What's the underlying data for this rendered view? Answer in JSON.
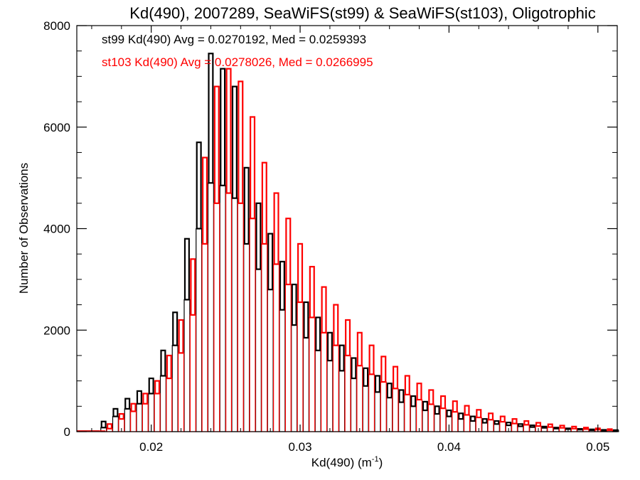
{
  "chart_data": {
    "type": "bar",
    "title": "Kd(490), 2007289, SeaWiFS(st99) & SeaWiFS(st103), Oligotrophic",
    "xlabel": "Kd(490) (m",
    "xlabel_sup": "-1",
    "xlabel_end": ")",
    "ylabel": "Number of Observations",
    "xlim": [
      0.015,
      0.0513
    ],
    "ylim": [
      0,
      8000
    ],
    "x_ticks": [
      0.02,
      0.03,
      0.04,
      0.05
    ],
    "x_tick_labels": [
      "0.02",
      "0.03",
      "0.04",
      "0.05"
    ],
    "y_ticks": [
      0,
      2000,
      4000,
      6000,
      8000
    ],
    "y_tick_labels": [
      "0",
      "2000",
      "4000",
      "6000",
      "8000"
    ],
    "grid": false,
    "legend_placement": "top-left",
    "series": [
      {
        "name": "st99",
        "color": "#000000",
        "legend_text": "st99 Kd(490) Avg = 0.0270192, Med = 0.0259393",
        "x": [
          0.0168,
          0.0176,
          0.0184,
          0.0192,
          0.02,
          0.0208,
          0.0216,
          0.0224,
          0.0232,
          0.024,
          0.0248,
          0.0256,
          0.0264,
          0.0272,
          0.028,
          0.0288,
          0.0296,
          0.0304,
          0.0312,
          0.032,
          0.0328,
          0.0336,
          0.0344,
          0.0352,
          0.036,
          0.0368,
          0.0376,
          0.0384,
          0.0392,
          0.04,
          0.0408,
          0.0416,
          0.0424,
          0.0432,
          0.044,
          0.0448,
          0.0456,
          0.0464,
          0.0472,
          0.048,
          0.0488,
          0.0496,
          0.0504,
          0.0512
        ],
        "high": [
          200,
          450,
          650,
          800,
          1050,
          1600,
          2350,
          3800,
          5700,
          7450,
          7150,
          6800,
          5200,
          4500,
          3900,
          3350,
          2900,
          2550,
          2250,
          1950,
          1700,
          1450,
          1250,
          1100,
          950,
          820,
          700,
          590,
          500,
          420,
          360,
          300,
          250,
          210,
          180,
          150,
          125,
          100,
          80,
          65,
          55,
          45,
          35,
          30
        ],
        "low": [
          80,
          300,
          450,
          550,
          750,
          1100,
          1700,
          2600,
          4000,
          4900,
          4850,
          4600,
          3700,
          3200,
          2800,
          2400,
          2100,
          1850,
          1600,
          1400,
          1200,
          1050,
          900,
          780,
          670,
          580,
          500,
          420,
          350,
          300,
          250,
          210,
          175,
          150,
          125,
          105,
          90,
          75,
          60,
          50,
          40,
          30,
          25,
          20
        ]
      },
      {
        "name": "st103",
        "color": "#ff0000",
        "legend_text": "st103 Kd(490) Avg = 0.0278026, Med = 0.0266995",
        "x": [
          0.0172,
          0.018,
          0.0188,
          0.0196,
          0.0204,
          0.0212,
          0.022,
          0.0228,
          0.0236,
          0.0244,
          0.0252,
          0.026,
          0.0268,
          0.0276,
          0.0284,
          0.0292,
          0.03,
          0.0308,
          0.0316,
          0.0324,
          0.0332,
          0.034,
          0.0348,
          0.0356,
          0.0364,
          0.0372,
          0.038,
          0.0388,
          0.0396,
          0.0404,
          0.0412,
          0.042,
          0.0428,
          0.0436,
          0.0444,
          0.0452,
          0.046,
          0.0468,
          0.0476,
          0.0484,
          0.0492,
          0.05,
          0.0508
        ],
        "high": [
          150,
          350,
          550,
          750,
          1000,
          1500,
          2200,
          3400,
          5400,
          6800,
          7150,
          6900,
          6200,
          5300,
          4700,
          4200,
          3700,
          3250,
          2850,
          2500,
          2200,
          1950,
          1700,
          1480,
          1280,
          1100,
          950,
          820,
          700,
          600,
          510,
          430,
          360,
          300,
          250,
          210,
          175,
          145,
          120,
          100,
          80,
          65,
          50
        ],
        "low": [
          60,
          250,
          400,
          550,
          750,
          1050,
          1550,
          2300,
          3700,
          4500,
          4700,
          4500,
          4200,
          3700,
          3300,
          2900,
          2550,
          2250,
          1950,
          1700,
          1500,
          1300,
          1130,
          980,
          850,
          730,
          630,
          540,
          460,
          390,
          330,
          280,
          235,
          195,
          160,
          135,
          110,
          90,
          75,
          60,
          50,
          40,
          30
        ]
      }
    ]
  }
}
